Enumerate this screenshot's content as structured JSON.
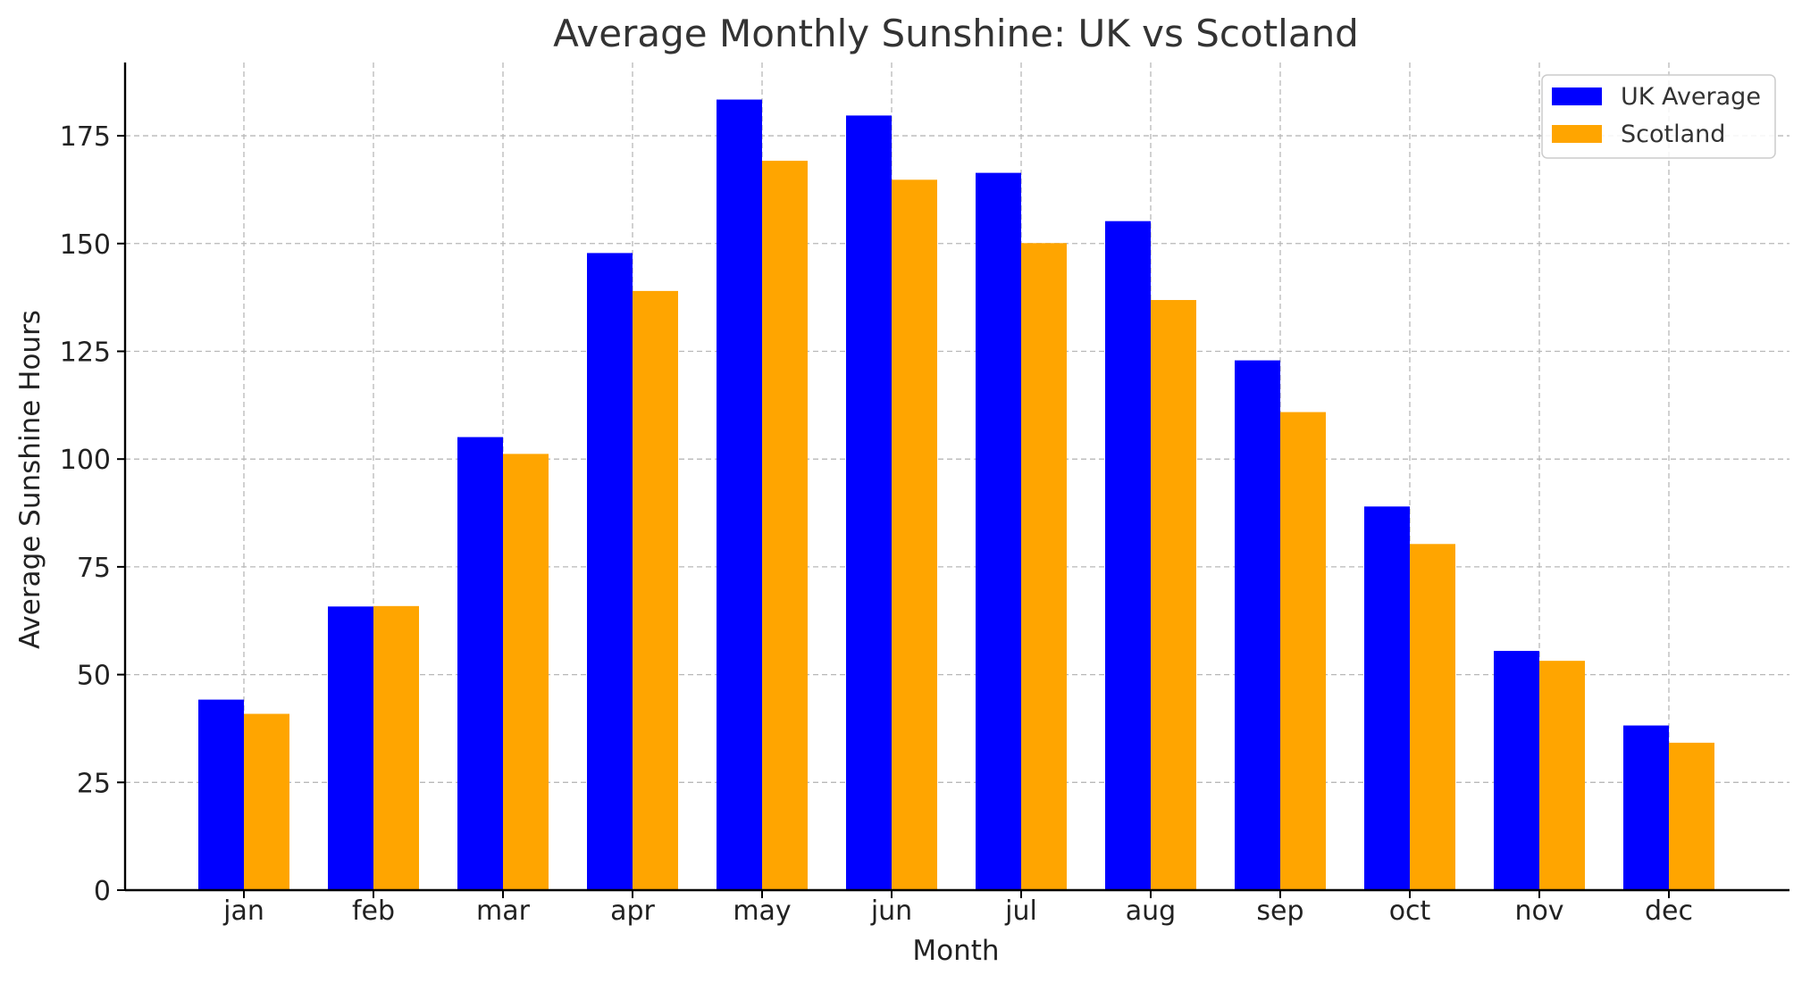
{
  "chart_data": {
    "type": "bar",
    "title": "Average Monthly Sunshine: UK vs Scotland",
    "xlabel": "Month",
    "ylabel": "Average Sunshine Hours",
    "categories": [
      "jan",
      "feb",
      "mar",
      "apr",
      "may",
      "jun",
      "jul",
      "aug",
      "sep",
      "oct",
      "nov",
      "dec"
    ],
    "series": [
      {
        "name": "UK Average",
        "color": "#0000ff",
        "values": [
          44.2,
          65.8,
          105.1,
          147.8,
          183.4,
          179.7,
          166.4,
          155.2,
          122.9,
          89.0,
          55.5,
          38.2
        ]
      },
      {
        "name": "Scotland",
        "color": "#ffa500",
        "values": [
          40.9,
          65.9,
          101.2,
          139.0,
          169.2,
          164.8,
          150.1,
          136.9,
          110.9,
          80.3,
          53.2,
          34.2
        ]
      }
    ],
    "ylim": [
      0,
      192
    ],
    "yticks": [
      0,
      25,
      50,
      75,
      100,
      125,
      150,
      175
    ],
    "grid": true,
    "legend_position": "top-right"
  }
}
